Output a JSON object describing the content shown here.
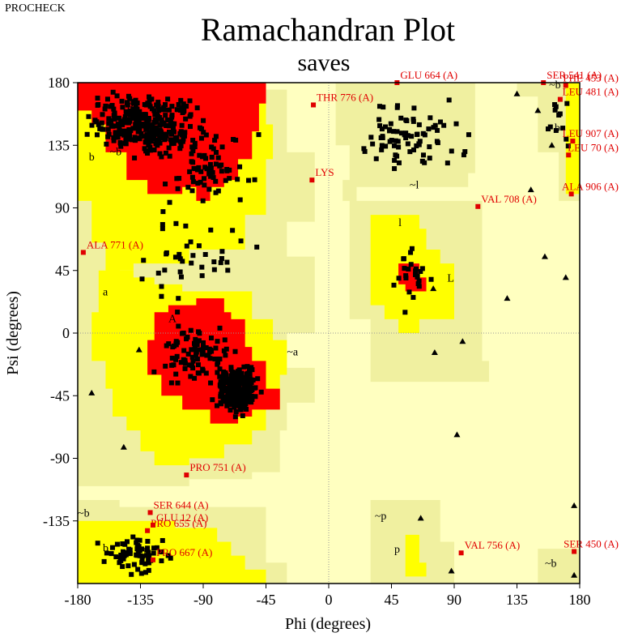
{
  "header": {
    "program": "PROCHECK"
  },
  "chart_data": {
    "type": "scatter",
    "title": "Ramachandran Plot",
    "subtitle": "saves",
    "xlabel": "Phi (degrees)",
    "ylabel": "Psi (degrees)",
    "xlim": [
      -180,
      180
    ],
    "ylim": [
      -180,
      180
    ],
    "xticks": [
      "-180",
      "-135",
      "-90",
      "-45",
      "0",
      "45",
      "90",
      "135",
      "180"
    ],
    "yticks": [
      "180",
      "135",
      "90",
      "45",
      "0",
      "-45",
      "-90",
      "-135"
    ],
    "colors": {
      "core": "#ff0000",
      "allowed": "#ffff00",
      "generous": "#f0f0a0",
      "disallowed": "#ffffc0",
      "outliers": "#e00000"
    },
    "region_labels": [
      {
        "text": "A",
        "phi": -115,
        "psi": 8
      },
      {
        "text": "a",
        "phi": -162,
        "psi": 27
      },
      {
        "text": "~a",
        "phi": -30,
        "psi": -16
      },
      {
        "text": "B",
        "phi": -145,
        "psi": 160
      },
      {
        "text": "b",
        "phi": -172,
        "psi": 124
      },
      {
        "text": "~b",
        "phi": -157,
        "psi": 128
      },
      {
        "text": "l",
        "phi": 50,
        "psi": 77
      },
      {
        "text": "L",
        "phi": 85,
        "psi": 37
      },
      {
        "text": "~l",
        "phi": 58,
        "psi": 104
      },
      {
        "text": "~b",
        "phi": 158,
        "psi": 176
      },
      {
        "text": "b",
        "phi": 162,
        "psi": 145
      },
      {
        "text": "~b",
        "phi": -180,
        "psi": -132
      },
      {
        "text": "b",
        "phi": -162,
        "psi": -157
      },
      {
        "text": "~p",
        "phi": 33,
        "psi": -134
      },
      {
        "text": "p",
        "phi": 47,
        "psi": -158
      },
      {
        "text": "~b",
        "phi": 155,
        "psi": -168
      }
    ],
    "residue_labels": [
      {
        "text": "ALA 771 (A)",
        "phi": -176,
        "psi": 58
      },
      {
        "text": "PRO 751 (A)",
        "phi": -102,
        "psi": -102
      },
      {
        "text": "SER 644 (A)",
        "phi": -128,
        "psi": -129
      },
      {
        "text": "GLU 12 (A)",
        "phi": -126,
        "psi": -138
      },
      {
        "text": "PRO 655 (A)",
        "phi": -130,
        "psi": -142
      },
      {
        "text": "PRO 667 (A)",
        "phi": -126,
        "psi": -163
      },
      {
        "text": "VAL 756 (A)",
        "phi": 95,
        "psi": -158
      },
      {
        "text": "SER 450 (A)",
        "phi": 176,
        "psi": -157
      },
      {
        "text": "SER 541 (A)",
        "phi": 154,
        "psi": 180
      },
      {
        "text": "PHE 453 (A)",
        "phi": 170,
        "psi": 178
      },
      {
        "text": "LEU 481 (A)",
        "phi": 166,
        "psi": 168
      },
      {
        "text": "LEU 907 (A)",
        "phi": 175,
        "psi": 138
      },
      {
        "text": "LEU 70 (A)",
        "phi": 172,
        "psi": 128
      },
      {
        "text": "ALA 906 (A)",
        "phi": 174,
        "psi": 100
      },
      {
        "text": "VAL 708 (A)",
        "phi": 107,
        "psi": 91
      },
      {
        "text": "THR 776 (A)",
        "phi": -11,
        "psi": 164
      },
      {
        "text": "GLU 664 (A)",
        "phi": 49,
        "psi": 180
      },
      {
        "text": "LYS",
        "phi": -12,
        "psi": 110
      }
    ],
    "residues_glycine": [
      {
        "phi": -136,
        "psi": -12
      },
      {
        "phi": -147,
        "psi": -82
      },
      {
        "phi": 76,
        "psi": -14
      },
      {
        "phi": 96,
        "psi": -6
      },
      {
        "phi": 128,
        "psi": 25
      },
      {
        "phi": 92,
        "psi": -73
      },
      {
        "phi": 150,
        "psi": 160
      },
      {
        "phi": 135,
        "psi": 172
      },
      {
        "phi": 160,
        "psi": 135
      },
      {
        "phi": 145,
        "psi": 103
      },
      {
        "phi": 155,
        "psi": 55
      },
      {
        "phi": 170,
        "psi": 40
      },
      {
        "phi": 176,
        "psi": -124
      },
      {
        "phi": 176,
        "psi": -174
      },
      {
        "phi": 88,
        "psi": -171
      },
      {
        "phi": 66,
        "psi": -133
      },
      {
        "phi": 75,
        "psi": 32
      },
      {
        "phi": -170,
        "psi": -43
      }
    ]
  }
}
